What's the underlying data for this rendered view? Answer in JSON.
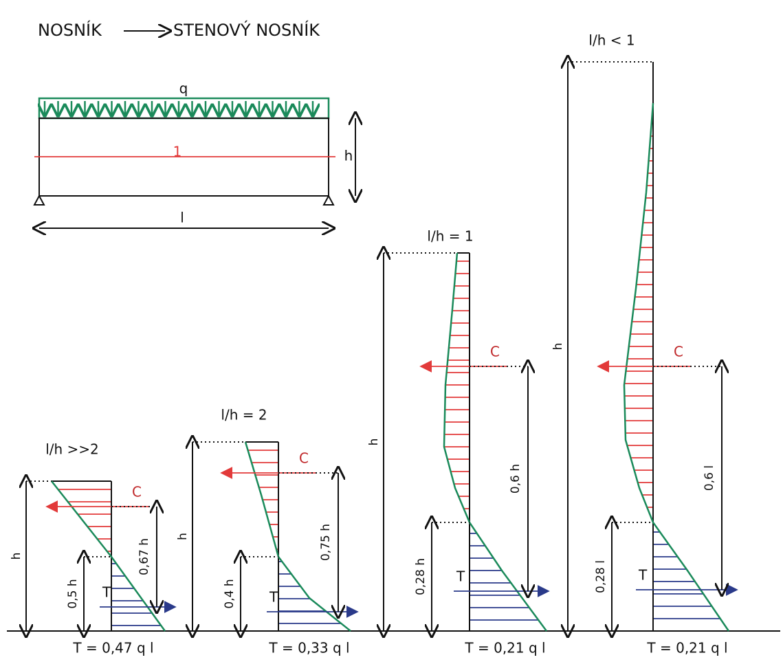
{
  "header": {
    "left": "NOSNÍK",
    "right": "STENOVÝ NOSNÍK"
  },
  "beam": {
    "load": "q",
    "section": "1",
    "height": "h",
    "span": "l"
  },
  "diagrams": [
    {
      "ratio": "l/h >>2",
      "compression": "C",
      "tension": "T",
      "lever_arm": "0,67 h",
      "tension_height": "0,5 h",
      "height": "h",
      "force": "T = 0,47 q l"
    },
    {
      "ratio": "l/h = 2",
      "compression": "C",
      "tension": "T",
      "lever_arm": "0,75 h",
      "tension_height": "0,4 h",
      "height": "h",
      "force": "T = 0,33 q l"
    },
    {
      "ratio": "l/h = 1",
      "compression": "C",
      "tension": "T",
      "lever_arm": "0,6 h",
      "tension_height": "0,28 h",
      "height": "h",
      "force": "T = 0,21 q l"
    },
    {
      "ratio": "l/h < 1",
      "compression": "C",
      "tension": "T",
      "lever_arm": "0,6 l",
      "tension_height": "0,28 l",
      "height": "h",
      "force": "T = 0,21 q l"
    }
  ]
}
